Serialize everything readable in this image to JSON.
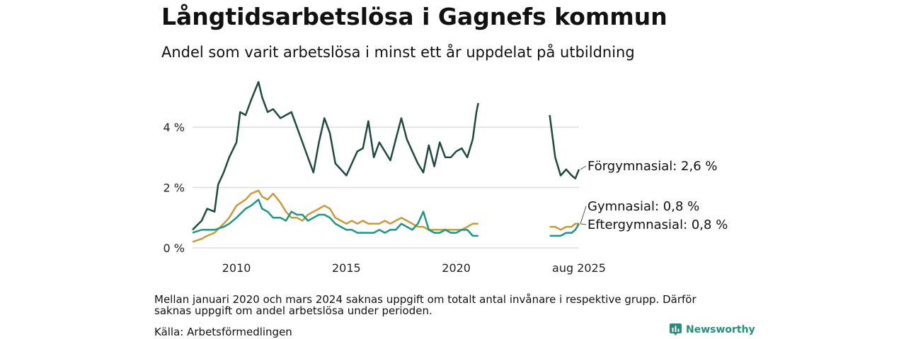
{
  "header": {
    "title": "Långtidsarbetslösa i Gagnefs kommun",
    "subtitle": "Andel som varit arbetslösa i minst ett år uppdelat på utbildning"
  },
  "footer": {
    "note": "Mellan januari 2020 och mars 2024 saknas uppgift om totalt antal invånare i respektive grupp. Därför saknas uppgift om andel arbetslösa under perioden.",
    "source": "Källa: Arbetsförmedlingen",
    "brand": "Newsworthy"
  },
  "chart_data": {
    "type": "line",
    "title": "Långtidsarbetslösa i Gagnefs kommun",
    "subtitle": "Andel som varit arbetslösa i minst ett år uppdelat på utbildning",
    "xlabel": "",
    "ylabel": "",
    "ylim": [
      0,
      5.5
    ],
    "yticks": [
      0,
      2,
      4
    ],
    "ytick_labels": [
      "0 %",
      "2 %",
      "4 %"
    ],
    "xtick_labels": [
      "2010",
      "2015",
      "2020",
      "aug 2025"
    ],
    "grid": "horizontal",
    "legend": "direct labels at line ends (right)",
    "colors": {
      "Förgymnasial": "#1e4a40",
      "Gymnasial": "#c89a3c",
      "Eftergymnasial": "#1f9583",
      "grid": "#dddddd"
    },
    "series": [
      {
        "name": "Förgymnasial",
        "end_label": "Förgymnasial: 2,6 %",
        "points": [
          [
            "2008-01",
            0.6
          ],
          [
            "2008-06",
            0.9
          ],
          [
            "2008-09",
            1.3
          ],
          [
            "2009-01",
            1.2
          ],
          [
            "2009-03",
            2.1
          ],
          [
            "2009-06",
            2.5
          ],
          [
            "2009-09",
            3.0
          ],
          [
            "2010-01",
            3.5
          ],
          [
            "2010-03",
            4.5
          ],
          [
            "2010-06",
            4.4
          ],
          [
            "2010-09",
            4.9
          ],
          [
            "2011-01",
            5.5
          ],
          [
            "2011-03",
            5.0
          ],
          [
            "2011-06",
            4.5
          ],
          [
            "2011-09",
            4.6
          ],
          [
            "2012-01",
            4.3
          ],
          [
            "2012-04",
            4.4
          ],
          [
            "2012-07",
            4.5
          ],
          [
            "2012-10",
            4.0
          ],
          [
            "2013-01",
            3.5
          ],
          [
            "2013-04",
            3.0
          ],
          [
            "2013-07",
            2.5
          ],
          [
            "2013-10",
            3.5
          ],
          [
            "2014-01",
            4.3
          ],
          [
            "2014-04",
            3.8
          ],
          [
            "2014-07",
            2.8
          ],
          [
            "2014-10",
            2.6
          ],
          [
            "2015-01",
            2.4
          ],
          [
            "2015-04",
            2.8
          ],
          [
            "2015-07",
            3.2
          ],
          [
            "2015-10",
            3.3
          ],
          [
            "2016-01",
            4.2
          ],
          [
            "2016-04",
            3.0
          ],
          [
            "2016-07",
            3.5
          ],
          [
            "2016-10",
            3.2
          ],
          [
            "2017-01",
            2.9
          ],
          [
            "2017-04",
            3.6
          ],
          [
            "2017-07",
            4.3
          ],
          [
            "2017-10",
            3.6
          ],
          [
            "2018-01",
            3.2
          ],
          [
            "2018-04",
            2.8
          ],
          [
            "2018-07",
            2.5
          ],
          [
            "2018-10",
            3.4
          ],
          [
            "2019-01",
            2.7
          ],
          [
            "2019-04",
            3.5
          ],
          [
            "2019-07",
            3.0
          ],
          [
            "2019-10",
            3.0
          ],
          [
            "2020-01",
            3.2
          ],
          [
            "2020-04",
            3.3
          ],
          [
            "2020-07",
            3.0
          ],
          [
            "2020-10",
            3.6
          ],
          [
            "2020-12",
            4.5
          ],
          [
            "2021-01",
            4.8
          ]
        ],
        "points_after_gap": [
          [
            "2024-04",
            4.4
          ],
          [
            "2024-07",
            3.0
          ],
          [
            "2024-10",
            2.4
          ],
          [
            "2025-01",
            2.6
          ],
          [
            "2025-04",
            2.4
          ],
          [
            "2025-06",
            2.3
          ],
          [
            "2025-08",
            2.6
          ]
        ]
      },
      {
        "name": "Gymnasial",
        "end_label": "Gymnasial: 0,8 %",
        "points": [
          [
            "2008-01",
            0.2
          ],
          [
            "2008-06",
            0.3
          ],
          [
            "2008-09",
            0.4
          ],
          [
            "2009-01",
            0.5
          ],
          [
            "2009-06",
            0.8
          ],
          [
            "2009-09",
            1.0
          ],
          [
            "2010-01",
            1.4
          ],
          [
            "2010-06",
            1.6
          ],
          [
            "2010-09",
            1.8
          ],
          [
            "2011-01",
            1.9
          ],
          [
            "2011-03",
            1.7
          ],
          [
            "2011-06",
            1.6
          ],
          [
            "2011-09",
            1.8
          ],
          [
            "2012-01",
            1.5
          ],
          [
            "2012-04",
            1.2
          ],
          [
            "2012-07",
            1.0
          ],
          [
            "2012-10",
            1.0
          ],
          [
            "2013-01",
            0.9
          ],
          [
            "2013-04",
            1.1
          ],
          [
            "2013-07",
            1.2
          ],
          [
            "2013-10",
            1.3
          ],
          [
            "2014-01",
            1.4
          ],
          [
            "2014-04",
            1.3
          ],
          [
            "2014-07",
            1.0
          ],
          [
            "2014-10",
            0.9
          ],
          [
            "2015-01",
            0.8
          ],
          [
            "2015-04",
            0.9
          ],
          [
            "2015-07",
            0.8
          ],
          [
            "2015-10",
            0.9
          ],
          [
            "2016-01",
            0.8
          ],
          [
            "2016-04",
            0.8
          ],
          [
            "2016-07",
            0.8
          ],
          [
            "2016-10",
            0.9
          ],
          [
            "2017-01",
            0.8
          ],
          [
            "2017-04",
            0.9
          ],
          [
            "2017-07",
            1.0
          ],
          [
            "2017-10",
            0.9
          ],
          [
            "2018-01",
            0.8
          ],
          [
            "2018-04",
            0.7
          ],
          [
            "2018-07",
            0.7
          ],
          [
            "2018-10",
            0.6
          ],
          [
            "2019-01",
            0.6
          ],
          [
            "2019-04",
            0.6
          ],
          [
            "2019-07",
            0.6
          ],
          [
            "2019-10",
            0.6
          ],
          [
            "2020-01",
            0.6
          ],
          [
            "2020-04",
            0.6
          ],
          [
            "2020-07",
            0.7
          ],
          [
            "2020-10",
            0.8
          ],
          [
            "2021-01",
            0.8
          ]
        ],
        "points_after_gap": [
          [
            "2024-04",
            0.7
          ],
          [
            "2024-07",
            0.7
          ],
          [
            "2024-10",
            0.6
          ],
          [
            "2025-01",
            0.7
          ],
          [
            "2025-04",
            0.7
          ],
          [
            "2025-06",
            0.8
          ],
          [
            "2025-08",
            0.8
          ]
        ]
      },
      {
        "name": "Eftergymnasial",
        "end_label": "Eftergymnasial: 0,8 %",
        "points": [
          [
            "2008-01",
            0.5
          ],
          [
            "2008-06",
            0.6
          ],
          [
            "2008-09",
            0.6
          ],
          [
            "2009-01",
            0.6
          ],
          [
            "2009-06",
            0.7
          ],
          [
            "2009-09",
            0.8
          ],
          [
            "2010-01",
            1.0
          ],
          [
            "2010-06",
            1.3
          ],
          [
            "2010-09",
            1.4
          ],
          [
            "2011-01",
            1.6
          ],
          [
            "2011-03",
            1.3
          ],
          [
            "2011-06",
            1.2
          ],
          [
            "2011-09",
            1.0
          ],
          [
            "2012-01",
            1.0
          ],
          [
            "2012-04",
            0.9
          ],
          [
            "2012-07",
            1.2
          ],
          [
            "2012-10",
            1.1
          ],
          [
            "2013-01",
            1.1
          ],
          [
            "2013-04",
            0.9
          ],
          [
            "2013-07",
            1.0
          ],
          [
            "2013-10",
            1.1
          ],
          [
            "2014-01",
            1.1
          ],
          [
            "2014-04",
            1.0
          ],
          [
            "2014-07",
            0.8
          ],
          [
            "2014-10",
            0.7
          ],
          [
            "2015-01",
            0.6
          ],
          [
            "2015-04",
            0.6
          ],
          [
            "2015-07",
            0.5
          ],
          [
            "2015-10",
            0.5
          ],
          [
            "2016-01",
            0.5
          ],
          [
            "2016-04",
            0.5
          ],
          [
            "2016-07",
            0.6
          ],
          [
            "2016-10",
            0.5
          ],
          [
            "2017-01",
            0.6
          ],
          [
            "2017-04",
            0.6
          ],
          [
            "2017-07",
            0.8
          ],
          [
            "2017-10",
            0.7
          ],
          [
            "2018-01",
            0.6
          ],
          [
            "2018-04",
            0.8
          ],
          [
            "2018-07",
            1.2
          ],
          [
            "2018-10",
            0.6
          ],
          [
            "2019-01",
            0.5
          ],
          [
            "2019-04",
            0.5
          ],
          [
            "2019-07",
            0.6
          ],
          [
            "2019-10",
            0.5
          ],
          [
            "2020-01",
            0.5
          ],
          [
            "2020-04",
            0.6
          ],
          [
            "2020-07",
            0.6
          ],
          [
            "2020-10",
            0.4
          ],
          [
            "2021-01",
            0.4
          ]
        ],
        "points_after_gap": [
          [
            "2024-04",
            0.4
          ],
          [
            "2024-07",
            0.4
          ],
          [
            "2024-10",
            0.4
          ],
          [
            "2025-01",
            0.5
          ],
          [
            "2025-04",
            0.5
          ],
          [
            "2025-06",
            0.6
          ],
          [
            "2025-08",
            0.8
          ]
        ]
      }
    ]
  }
}
